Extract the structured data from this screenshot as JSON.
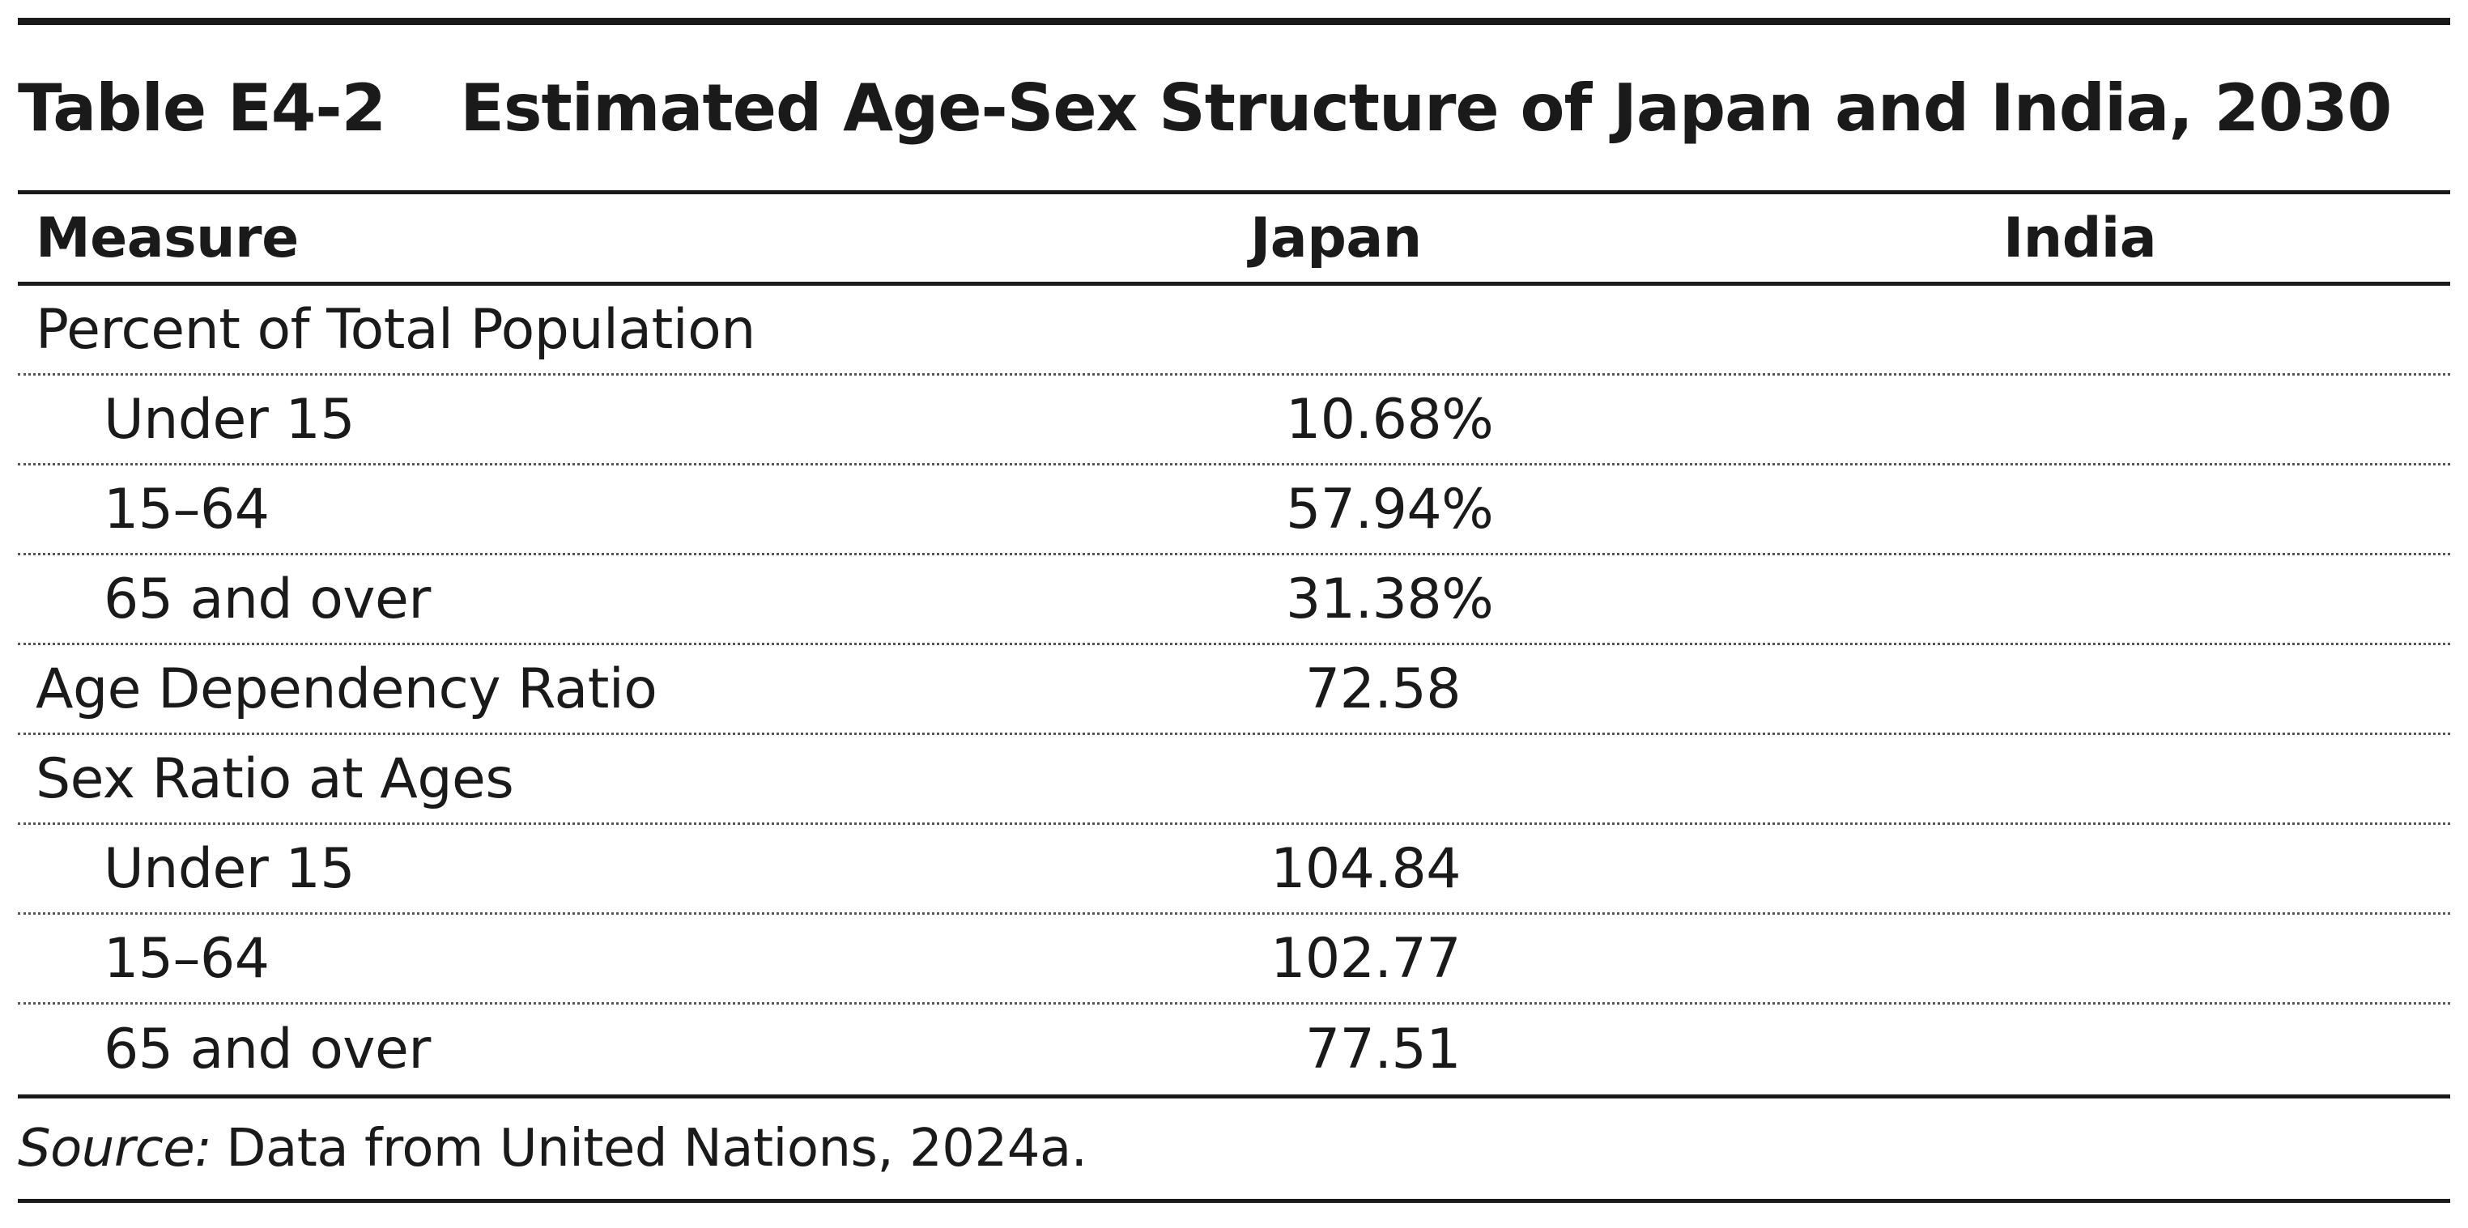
{
  "table": {
    "number": "Table E4-2",
    "title": "Estimated Age-Sex Structure of Japan and India, 2030",
    "headers": {
      "measure": "Measure",
      "japan": "Japan",
      "india": "India"
    },
    "rows": [
      {
        "label": "Percent of Total Population",
        "japan": "",
        "india": "",
        "indent": false
      },
      {
        "label": "Under 15",
        "japan": "10.68%",
        "india": "",
        "indent": true
      },
      {
        "label": "15–64",
        "japan": "57.94%",
        "india": "",
        "indent": true
      },
      {
        "label": "65 and over",
        "japan": "31.38%",
        "india": "",
        "indent": true
      },
      {
        "label": "Age Dependency Ratio",
        "japan": "72.58",
        "india": "",
        "indent": false
      },
      {
        "label": "Sex Ratio at Ages",
        "japan": "",
        "india": "",
        "indent": false
      },
      {
        "label": "Under 15",
        "japan": "104.84",
        "india": "",
        "indent": true
      },
      {
        "label": "15–64",
        "japan": "102.77",
        "india": "",
        "indent": true
      },
      {
        "label": "65 and over",
        "japan": "77.51",
        "india": "",
        "indent": true
      }
    ],
    "source": {
      "label": "Source:",
      "text": "Data from United Nations, 2024a."
    }
  }
}
